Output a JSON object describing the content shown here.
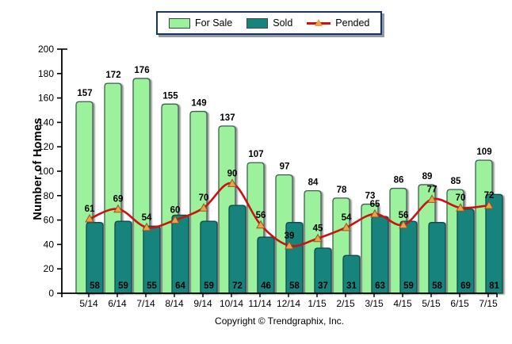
{
  "chart_data": {
    "type": "bar",
    "categories": [
      "5/14",
      "6/14",
      "7/14",
      "8/14",
      "9/14",
      "10/14",
      "11/14",
      "12/14",
      "1/15",
      "2/15",
      "3/15",
      "4/15",
      "5/15",
      "6/15",
      "7/15"
    ],
    "series": [
      {
        "name": "For Sale",
        "type": "bar",
        "color": "#9cf29c",
        "border": "#3d5e52",
        "values": [
          157,
          172,
          176,
          155,
          149,
          137,
          107,
          97,
          84,
          78,
          73,
          86,
          89,
          85,
          109
        ]
      },
      {
        "name": "Sold",
        "type": "bar",
        "color": "#17837c",
        "border": "#0d4a47",
        "values": [
          58,
          59,
          55,
          64,
          59,
          72,
          46,
          58,
          37,
          31,
          63,
          59,
          58,
          69,
          81
        ]
      },
      {
        "name": "Pended",
        "type": "line",
        "color": "#cc1111",
        "marker_fill": "#f0a24a",
        "marker_stroke": "#8a5a20",
        "values": [
          61,
          69,
          54,
          60,
          70,
          90,
          56,
          39,
          45,
          54,
          65,
          56,
          77,
          70,
          72
        ]
      }
    ],
    "title": "",
    "xlabel": "",
    "ylabel": "Number of Homes",
    "ylim": [
      0,
      200
    ],
    "ytick_step": 20,
    "grid": false,
    "legend_position": "top",
    "axis_color": "#000000",
    "label_color": "#000000"
  },
  "footer": {
    "copyright": "Copyright © Trendgraphix, Inc."
  }
}
